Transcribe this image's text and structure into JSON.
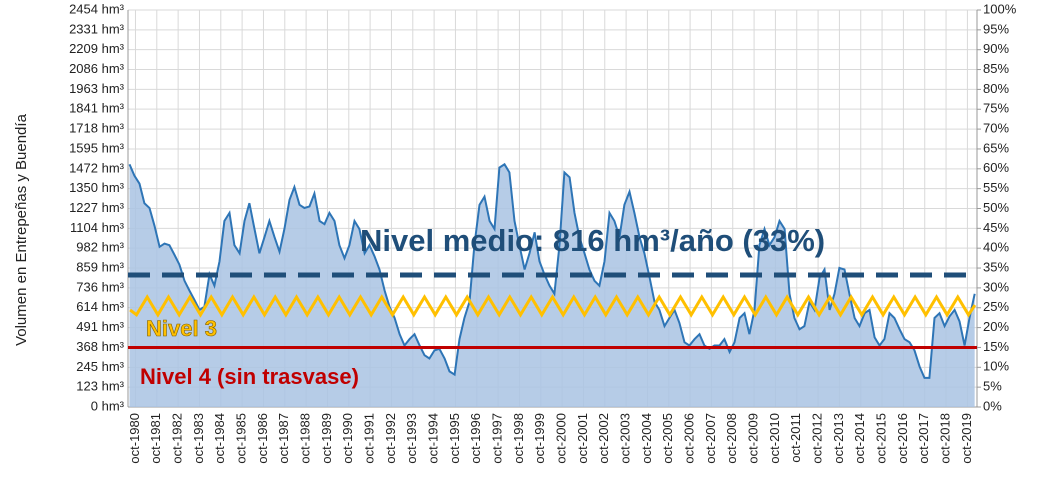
{
  "chart_data": {
    "type": "area",
    "y_label": "Volumen en Entrepeñas y Buendía",
    "xlim": [
      1980.4,
      2020.2
    ],
    "ylim": [
      0,
      2454
    ],
    "y2lim": [
      0,
      100
    ],
    "grid": true,
    "xticks": [
      {
        "value": 1980.75,
        "label": "oct-1980"
      },
      {
        "value": 1981.75,
        "label": "oct-1981"
      },
      {
        "value": 1982.75,
        "label": "oct-1982"
      },
      {
        "value": 1983.75,
        "label": "oct-1983"
      },
      {
        "value": 1984.75,
        "label": "oct-1984"
      },
      {
        "value": 1985.75,
        "label": "oct-1985"
      },
      {
        "value": 1986.75,
        "label": "oct-1986"
      },
      {
        "value": 1987.75,
        "label": "oct-1987"
      },
      {
        "value": 1988.75,
        "label": "oct-1988"
      },
      {
        "value": 1989.75,
        "label": "oct-1989"
      },
      {
        "value": 1990.75,
        "label": "oct-1990"
      },
      {
        "value": 1991.75,
        "label": "oct-1991"
      },
      {
        "value": 1992.75,
        "label": "oct-1992"
      },
      {
        "value": 1993.75,
        "label": "oct-1993"
      },
      {
        "value": 1994.75,
        "label": "oct-1994"
      },
      {
        "value": 1995.75,
        "label": "oct-1995"
      },
      {
        "value": 1996.75,
        "label": "oct-1996"
      },
      {
        "value": 1997.75,
        "label": "oct-1997"
      },
      {
        "value": 1998.75,
        "label": "oct-1998"
      },
      {
        "value": 1999.75,
        "label": "oct-1999"
      },
      {
        "value": 2000.75,
        "label": "oct-2000"
      },
      {
        "value": 2001.75,
        "label": "oct-2001"
      },
      {
        "value": 2002.75,
        "label": "oct-2002"
      },
      {
        "value": 2003.75,
        "label": "oct-2003"
      },
      {
        "value": 2004.75,
        "label": "oct-2004"
      },
      {
        "value": 2005.75,
        "label": "oct-2005"
      },
      {
        "value": 2006.75,
        "label": "oct-2006"
      },
      {
        "value": 2007.75,
        "label": "oct-2007"
      },
      {
        "value": 2008.75,
        "label": "oct-2008"
      },
      {
        "value": 2009.75,
        "label": "oct-2009"
      },
      {
        "value": 2010.75,
        "label": "oct-2010"
      },
      {
        "value": 2011.75,
        "label": "oct-2011"
      },
      {
        "value": 2012.75,
        "label": "oct-2012"
      },
      {
        "value": 2013.75,
        "label": "oct-2013"
      },
      {
        "value": 2014.75,
        "label": "oct-2014"
      },
      {
        "value": 2015.75,
        "label": "oct-2015"
      },
      {
        "value": 2016.75,
        "label": "oct-2016"
      },
      {
        "value": 2017.75,
        "label": "oct-2017"
      },
      {
        "value": 2018.75,
        "label": "oct-2018"
      },
      {
        "value": 2019.75,
        "label": "oct-2019"
      }
    ],
    "yticks": [
      {
        "value": 0,
        "label": "0 hm³"
      },
      {
        "value": 123,
        "label": "123 hm³"
      },
      {
        "value": 245,
        "label": "245 hm³"
      },
      {
        "value": 368,
        "label": "368 hm³"
      },
      {
        "value": 491,
        "label": "491 hm³"
      },
      {
        "value": 614,
        "label": "614 hm³"
      },
      {
        "value": 736,
        "label": "736 hm³"
      },
      {
        "value": 859,
        "label": "859 hm³"
      },
      {
        "value": 982,
        "label": "982 hm³"
      },
      {
        "value": 1104,
        "label": "1104 hm³"
      },
      {
        "value": 1227,
        "label": "1227 hm³"
      },
      {
        "value": 1350,
        "label": "1350 hm³"
      },
      {
        "value": 1472,
        "label": "1472 hm³"
      },
      {
        "value": 1595,
        "label": "1595 hm³"
      },
      {
        "value": 1718,
        "label": "1718 hm³"
      },
      {
        "value": 1841,
        "label": "1841 hm³"
      },
      {
        "value": 1963,
        "label": "1963 hm³"
      },
      {
        "value": 2086,
        "label": "2086 hm³"
      },
      {
        "value": 2209,
        "label": "2209 hm³"
      },
      {
        "value": 2331,
        "label": "2331 hm³"
      },
      {
        "value": 2454,
        "label": "2454 hm³"
      }
    ],
    "y2ticks": [
      {
        "value": 0,
        "label": "0%"
      },
      {
        "value": 5,
        "label": "5%"
      },
      {
        "value": 10,
        "label": "10%"
      },
      {
        "value": 15,
        "label": "15%"
      },
      {
        "value": 20,
        "label": "20%"
      },
      {
        "value": 25,
        "label": "25%"
      },
      {
        "value": 30,
        "label": "30%"
      },
      {
        "value": 35,
        "label": "35%"
      },
      {
        "value": 40,
        "label": "40%"
      },
      {
        "value": 45,
        "label": "45%"
      },
      {
        "value": 50,
        "label": "50%"
      },
      {
        "value": 55,
        "label": "55%"
      },
      {
        "value": 60,
        "label": "60%"
      },
      {
        "value": 65,
        "label": "65%"
      },
      {
        "value": 70,
        "label": "70%"
      },
      {
        "value": 75,
        "label": "75%"
      },
      {
        "value": 80,
        "label": "80%"
      },
      {
        "value": 85,
        "label": "85%"
      },
      {
        "value": 90,
        "label": "90%"
      },
      {
        "value": 95,
        "label": "95%"
      },
      {
        "value": 100,
        "label": "100%"
      }
    ],
    "series": [
      {
        "color": "#2e75b6",
        "fill": "#a9c3e3",
        "x": [
          1980.47,
          1980.7,
          1980.94,
          1981.17,
          1981.41,
          1981.64,
          1981.88,
          1982.11,
          1982.34,
          1982.58,
          1982.81,
          1983.05,
          1983.28,
          1983.52,
          1983.75,
          1983.98,
          1984.22,
          1984.45,
          1984.69,
          1984.92,
          1985.16,
          1985.39,
          1985.63,
          1985.86,
          1986.09,
          1986.33,
          1986.56,
          1986.8,
          1987.03,
          1987.27,
          1987.5,
          1987.73,
          1987.97,
          1988.2,
          1988.44,
          1988.67,
          1988.91,
          1989.14,
          1989.38,
          1989.61,
          1989.84,
          1990.08,
          1990.31,
          1990.55,
          1990.78,
          1991.02,
          1991.25,
          1991.49,
          1991.72,
          1991.96,
          1992.19,
          1992.43,
          1992.66,
          1992.9,
          1993.13,
          1993.36,
          1993.6,
          1993.83,
          1994.07,
          1994.3,
          1994.53,
          1994.77,
          1995.0,
          1995.24,
          1995.47,
          1995.71,
          1995.94,
          1996.17,
          1996.41,
          1996.64,
          1996.88,
          1997.11,
          1997.35,
          1997.58,
          1997.81,
          1998.05,
          1998.28,
          1998.52,
          1998.75,
          1998.99,
          1999.22,
          1999.46,
          1999.69,
          1999.92,
          2000.16,
          2000.39,
          2000.63,
          2000.86,
          2001.1,
          2001.33,
          2001.56,
          2001.8,
          2002.03,
          2002.27,
          2002.5,
          2002.74,
          2002.97,
          2003.2,
          2003.44,
          2003.67,
          2003.91,
          2004.14,
          2004.38,
          2004.61,
          2004.85,
          2005.08,
          2005.31,
          2005.55,
          2005.78,
          2006.02,
          2006.25,
          2006.49,
          2006.72,
          2006.96,
          2007.19,
          2007.42,
          2007.66,
          2007.89,
          2008.13,
          2008.36,
          2008.6,
          2008.83,
          2009.07,
          2009.3,
          2009.53,
          2009.77,
          2010.0,
          2010.24,
          2010.47,
          2010.71,
          2010.94,
          2011.18,
          2011.41,
          2011.64,
          2011.88,
          2012.11,
          2012.35,
          2012.58,
          2012.82,
          2013.05,
          2013.29,
          2013.52,
          2013.75,
          2013.99,
          2014.22,
          2014.46,
          2014.69,
          2014.93,
          2015.16,
          2015.4,
          2015.63,
          2015.86,
          2016.1,
          2016.33,
          2016.57,
          2016.8,
          2017.04,
          2017.27,
          2017.51,
          2017.74,
          2017.97,
          2018.21,
          2018.44,
          2018.68,
          2018.91,
          2019.15,
          2019.38,
          2019.62,
          2019.85,
          2020.09
        ],
        "values": [
          1500,
          1430,
          1380,
          1260,
          1230,
          1120,
          990,
          1010,
          1000,
          940,
          880,
          780,
          720,
          660,
          600,
          620,
          820,
          750,
          900,
          1150,
          1200,
          1000,
          950,
          1150,
          1260,
          1100,
          950,
          1050,
          1150,
          1050,
          960,
          1100,
          1280,
          1360,
          1250,
          1230,
          1240,
          1320,
          1150,
          1130,
          1200,
          1150,
          1000,
          920,
          1000,
          1150,
          1100,
          950,
          1000,
          930,
          850,
          720,
          620,
          550,
          450,
          380,
          420,
          450,
          380,
          320,
          300,
          350,
          360,
          300,
          220,
          200,
          420,
          550,
          650,
          1000,
          1250,
          1300,
          1150,
          1100,
          1480,
          1500,
          1450,
          1150,
          1000,
          850,
          950,
          1080,
          900,
          820,
          750,
          700,
          1000,
          1450,
          1420,
          1200,
          1050,
          950,
          850,
          780,
          750,
          900,
          1200,
          1150,
          1050,
          1250,
          1330,
          1200,
          1050,
          950,
          800,
          650,
          600,
          500,
          550,
          600,
          520,
          400,
          380,
          420,
          450,
          380,
          360,
          380,
          380,
          420,
          340,
          400,
          550,
          580,
          450,
          600,
          1000,
          1100,
          1000,
          1050,
          1150,
          1100,
          700,
          550,
          480,
          500,
          650,
          600,
          800,
          850,
          600,
          700,
          860,
          850,
          700,
          550,
          500,
          580,
          600,
          430,
          380,
          420,
          580,
          550,
          480,
          420,
          400,
          350,
          250,
          180,
          180,
          550,
          580,
          500,
          560,
          600,
          530,
          380,
          550,
          700
        ]
      },
      {
        "name": "Nivel 3",
        "color": "#ffc000",
        "x": [
          1980.5,
          1980.8,
          1981.3,
          1981.8,
          1982.3,
          1982.8,
          1983.3,
          1983.8,
          1984.3,
          1984.8,
          1985.3,
          1985.8,
          1986.3,
          1986.8,
          1987.3,
          1987.8,
          1988.3,
          1988.8,
          1989.3,
          1989.8,
          1990.3,
          1990.8,
          1991.3,
          1991.8,
          1992.3,
          1992.8,
          1993.3,
          1993.8,
          1994.3,
          1994.8,
          1995.3,
          1995.8,
          1996.3,
          1996.8,
          1997.3,
          1997.8,
          1998.3,
          1998.8,
          1999.3,
          1999.8,
          2000.3,
          2000.8,
          2001.3,
          2001.8,
          2002.3,
          2002.8,
          2003.3,
          2003.8,
          2004.3,
          2004.8,
          2005.3,
          2005.8,
          2006.3,
          2006.8,
          2007.3,
          2007.8,
          2008.3,
          2008.8,
          2009.3,
          2009.8,
          2010.3,
          2010.8,
          2011.3,
          2011.8,
          2012.3,
          2012.8,
          2013.3,
          2013.8,
          2014.3,
          2014.8,
          2015.3,
          2015.8,
          2016.3,
          2016.8,
          2017.3,
          2017.8,
          2018.3,
          2018.8,
          2019.3,
          2019.8,
          2020.1
        ],
        "values": [
          600,
          570,
          680,
          570,
          680,
          570,
          680,
          570,
          680,
          570,
          680,
          570,
          680,
          570,
          680,
          570,
          680,
          570,
          680,
          570,
          680,
          570,
          680,
          570,
          680,
          570,
          680,
          570,
          680,
          570,
          680,
          570,
          680,
          570,
          680,
          570,
          680,
          570,
          680,
          570,
          680,
          570,
          680,
          570,
          680,
          570,
          680,
          570,
          680,
          570,
          680,
          570,
          680,
          570,
          680,
          570,
          680,
          570,
          680,
          570,
          680,
          570,
          680,
          570,
          680,
          570,
          680,
          570,
          680,
          570,
          680,
          570,
          680,
          570,
          680,
          570,
          680,
          570,
          680,
          570,
          630
        ]
      },
      {
        "name": "Nivel 4 (sin trasvase)",
        "color": "#c00000",
        "x": [
          1980.4,
          2020.2
        ],
        "values": [
          368,
          368
        ]
      },
      {
        "name": "Nivel medio: 816 hm³/año (33%)",
        "color": "#1f4e79",
        "dash": true,
        "x": [
          1980.4,
          2020.2
        ],
        "values": [
          816,
          816
        ]
      }
    ]
  }
}
